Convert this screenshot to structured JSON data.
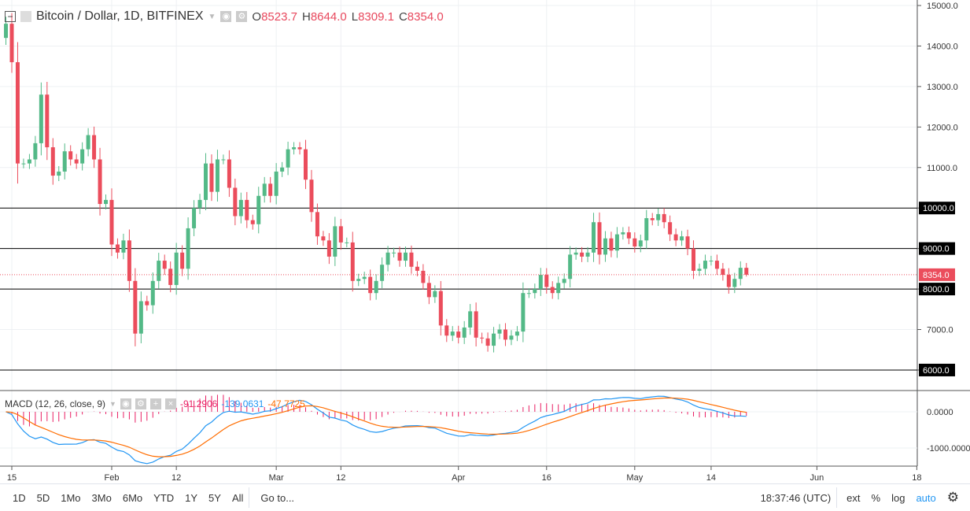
{
  "header": {
    "title": "Bitcoin / Dollar, 1D, BITFINEX",
    "open_label": "O",
    "open": "8523.7",
    "high_label": "H",
    "high": "8644.0",
    "low_label": "L",
    "low": "8309.1",
    "close_label": "C",
    "close": "8354.0"
  },
  "macd": {
    "label": "MACD (12, 26, close, 9)",
    "histogram": "-91.2906",
    "macd": "-139.0631",
    "signal": "-47.7725",
    "colors": {
      "macd": "#2196f3",
      "signal": "#ff6d00",
      "hist": "#e91e63"
    }
  },
  "colors": {
    "up": "#53b987",
    "down": "#eb4d5c",
    "price_label": "#eb4d5c"
  },
  "price_axis": {
    "ticks": [
      "15000.0",
      "14000.0",
      "13000.0",
      "12000.0",
      "11000.0",
      "10000.0",
      "9000.0",
      "8000.0",
      "7000.0",
      "6000.0"
    ],
    "macd_ticks": [
      "0.0000",
      "-1000.0000"
    ],
    "current": "8354.0"
  },
  "hlines": [
    {
      "value": 10000,
      "label": "10000.0"
    },
    {
      "value": 9000,
      "label": "9000.0"
    },
    {
      "value": 8000,
      "label": "8000.0"
    },
    {
      "value": 6000,
      "label": "6000.0"
    }
  ],
  "x_ticks": [
    {
      "label": "15",
      "day": 1
    },
    {
      "label": "Feb",
      "day": 18
    },
    {
      "label": "12",
      "day": 29
    },
    {
      "label": "Mar",
      "day": 46
    },
    {
      "label": "12",
      "day": 57
    },
    {
      "label": "Apr",
      "day": 77
    },
    {
      "label": "16",
      "day": 92
    },
    {
      "label": "May",
      "day": 107
    },
    {
      "label": "14",
      "day": 120
    },
    {
      "label": "Jun",
      "day": 138
    },
    {
      "label": "18",
      "day": 155
    }
  ],
  "chart_data": {
    "type": "candlestick",
    "symbol": "BTCUSD",
    "interval": "1D",
    "first_open": 14200,
    "last_candle": {
      "o": 8523.7,
      "h": 8644.0,
      "l": 8309.1,
      "c": 8354.0
    },
    "closes": [
      14550,
      13600,
      11100,
      11100,
      11200,
      11600,
      12800,
      11500,
      10800,
      10900,
      11400,
      11200,
      11100,
      11450,
      11800,
      11200,
      10100,
      10200,
      9100,
      8900,
      9200,
      8200,
      6900,
      7700,
      7600,
      8200,
      8700,
      8500,
      8100,
      8900,
      8500,
      9500,
      10000,
      10200,
      11100,
      10400,
      11200,
      11200,
      10500,
      9800,
      10200,
      9700,
      9600,
      10300,
      10600,
      10300,
      10900,
      11000,
      11450,
      11500,
      11450,
      10700,
      9900,
      9300,
      9200,
      8800,
      9550,
      9150,
      9150,
      8200,
      8250,
      8300,
      7900,
      8200,
      8600,
      8900,
      8900,
      8700,
      8900,
      8550,
      8450,
      8150,
      7800,
      7950,
      7100,
      6850,
      6950,
      6800,
      7050,
      7450,
      6800,
      6780,
      6600,
      6900,
      7000,
      6750,
      6850,
      6950,
      7900,
      7900,
      8000,
      8350,
      8050,
      7900,
      8150,
      8250,
      8850,
      8900,
      8800,
      8900,
      9650,
      8850,
      9250,
      8950,
      9350,
      9400,
      9250,
      9050,
      9200,
      9750,
      9700,
      9850,
      9650,
      9350,
      9200,
      9300,
      9000,
      8450,
      8500,
      8700,
      8700,
      8500,
      8350,
      8050,
      8250,
      8523.7,
      8354
    ]
  },
  "bottom": {
    "ranges": [
      "1D",
      "5D",
      "1Mo",
      "3Mo",
      "6Mo",
      "YTD",
      "1Y",
      "5Y",
      "All"
    ],
    "goto": "Go to...",
    "time": "18:37:46 (UTC)",
    "ext": "ext",
    "percent": "%",
    "log": "log",
    "auto": "auto"
  }
}
